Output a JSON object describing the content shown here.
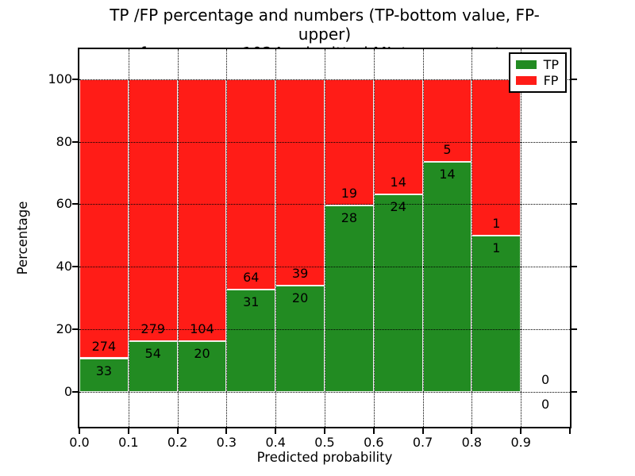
{
  "chart_data": {
    "type": "bar",
    "stacked": true,
    "title_line1": "TP /FP percentage and numbers (TP-bottom value, FP-upper)",
    "title_line2": "from among 1024 submitted ML-type contacts",
    "total_submitted": 1024,
    "xlabel": "Predicted probability",
    "ylabel": "Percentage",
    "xlim": [
      0.0,
      1.0
    ],
    "ylim": [
      -11.2,
      109.6
    ],
    "bin_width": 0.1,
    "grid": "dotted",
    "colors": {
      "tp": "#228b22",
      "fp": "#ff1c17",
      "grid": "#000000",
      "spine": "#000000"
    },
    "legend": {
      "position": "upper right",
      "entries": [
        {
          "label": "TP",
          "color": "#228b22"
        },
        {
          "label": "FP",
          "color": "#ff1c17"
        }
      ]
    },
    "y_ticks": [
      {
        "v": 0,
        "label": "0"
      },
      {
        "v": 20,
        "label": "20"
      },
      {
        "v": 40,
        "label": "40"
      },
      {
        "v": 60,
        "label": "60"
      },
      {
        "v": 80,
        "label": "80"
      },
      {
        "v": 100,
        "label": "100"
      }
    ],
    "x_ticks": [
      {
        "v": 0.0,
        "label": "0.0"
      },
      {
        "v": 0.1,
        "label": "0.1"
      },
      {
        "v": 0.2,
        "label": "0.2"
      },
      {
        "v": 0.3,
        "label": "0.3"
      },
      {
        "v": 0.4,
        "label": "0.4"
      },
      {
        "v": 0.5,
        "label": "0.5"
      },
      {
        "v": 0.6,
        "label": "0.6"
      },
      {
        "v": 0.7,
        "label": "0.7"
      },
      {
        "v": 0.8,
        "label": "0.8"
      },
      {
        "v": 0.9,
        "label": "0.9"
      },
      {
        "v": 1.0,
        "label": ""
      }
    ],
    "bins": [
      {
        "x_start": 0.0,
        "x_end": 0.1,
        "tp": 33,
        "fp": 274,
        "tp_pct": 10.7
      },
      {
        "x_start": 0.1,
        "x_end": 0.2,
        "tp": 54,
        "fp": 279,
        "tp_pct": 16.2
      },
      {
        "x_start": 0.2,
        "x_end": 0.3,
        "tp": 20,
        "fp": 104,
        "tp_pct": 16.1
      },
      {
        "x_start": 0.3,
        "x_end": 0.4,
        "tp": 31,
        "fp": 64,
        "tp_pct": 32.6
      },
      {
        "x_start": 0.4,
        "x_end": 0.5,
        "tp": 20,
        "fp": 39,
        "tp_pct": 33.9
      },
      {
        "x_start": 0.5,
        "x_end": 0.6,
        "tp": 28,
        "fp": 19,
        "tp_pct": 59.6
      },
      {
        "x_start": 0.6,
        "x_end": 0.7,
        "tp": 24,
        "fp": 14,
        "tp_pct": 63.2
      },
      {
        "x_start": 0.7,
        "x_end": 0.8,
        "tp": 14,
        "fp": 5,
        "tp_pct": 73.7
      },
      {
        "x_start": 0.8,
        "x_end": 0.9,
        "tp": 1,
        "fp": 1,
        "tp_pct": 50.0
      },
      {
        "x_start": 0.9,
        "x_end": 1.0,
        "tp": 0,
        "fp": 0,
        "tp_pct": 0.0
      }
    ]
  }
}
